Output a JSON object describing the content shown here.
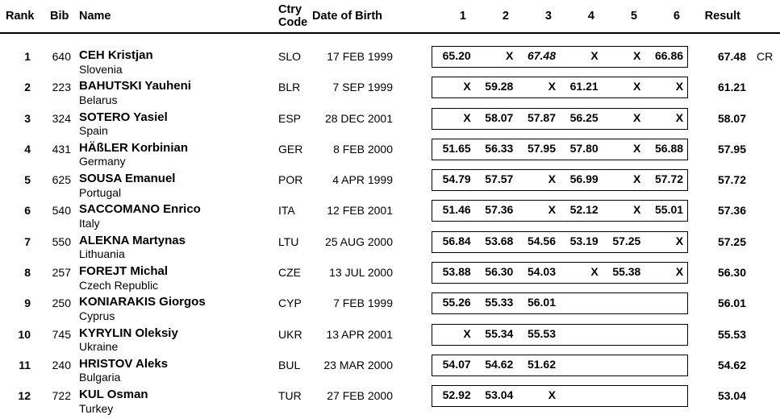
{
  "header": {
    "rank": "Rank",
    "bib": "Bib",
    "name": "Name",
    "ctry_line1": "Ctry",
    "ctry_line2": "Code",
    "dob": "Date of Birth",
    "attempts": [
      "1",
      "2",
      "3",
      "4",
      "5",
      "6"
    ],
    "result": "Result"
  },
  "rows": [
    {
      "rank": "1",
      "bib": "640",
      "name": "CEH Kristjan",
      "country": "Slovenia",
      "code": "SLO",
      "dob": "17 FEB 1999",
      "attempts": [
        "65.20",
        "X",
        "67.48",
        "X",
        "X",
        "66.86"
      ],
      "italic_attempt": 2,
      "result": "67.48",
      "note": "CR"
    },
    {
      "rank": "2",
      "bib": "223",
      "name": "BAHUTSKI Yauheni",
      "country": "Belarus",
      "code": "BLR",
      "dob": "7 SEP 1999",
      "attempts": [
        "X",
        "59.28",
        "X",
        "61.21",
        "X",
        "X"
      ],
      "italic_attempt": -1,
      "result": "61.21",
      "note": ""
    },
    {
      "rank": "3",
      "bib": "324",
      "name": "SOTERO Yasiel",
      "country": "Spain",
      "code": "ESP",
      "dob": "28 DEC 2001",
      "attempts": [
        "X",
        "58.07",
        "57.87",
        "56.25",
        "X",
        "X"
      ],
      "italic_attempt": -1,
      "result": "58.07",
      "note": ""
    },
    {
      "rank": "4",
      "bib": "431",
      "name": "HÄßLER Korbinian",
      "country": "Germany",
      "code": "GER",
      "dob": "8 FEB 2000",
      "attempts": [
        "51.65",
        "56.33",
        "57.95",
        "57.80",
        "X",
        "56.88"
      ],
      "italic_attempt": -1,
      "result": "57.95",
      "note": ""
    },
    {
      "rank": "5",
      "bib": "625",
      "name": "SOUSA Emanuel",
      "country": "Portugal",
      "code": "POR",
      "dob": "4 APR 1999",
      "attempts": [
        "54.79",
        "57.57",
        "X",
        "56.99",
        "X",
        "57.72"
      ],
      "italic_attempt": -1,
      "result": "57.72",
      "note": ""
    },
    {
      "rank": "6",
      "bib": "540",
      "name": "SACCOMANO Enrico",
      "country": "Italy",
      "code": "ITA",
      "dob": "12 FEB 2001",
      "attempts": [
        "51.46",
        "57.36",
        "X",
        "52.12",
        "X",
        "55.01"
      ],
      "italic_attempt": -1,
      "result": "57.36",
      "note": ""
    },
    {
      "rank": "7",
      "bib": "550",
      "name": "ALEKNA Martynas",
      "country": "Lithuania",
      "code": "LTU",
      "dob": "25 AUG 2000",
      "attempts": [
        "56.84",
        "53.68",
        "54.56",
        "53.19",
        "57.25",
        "X"
      ],
      "italic_attempt": -1,
      "result": "57.25",
      "note": ""
    },
    {
      "rank": "8",
      "bib": "257",
      "name": "FOREJT Michal",
      "country": "Czech Republic",
      "code": "CZE",
      "dob": "13 JUL 2000",
      "attempts": [
        "53.88",
        "56.30",
        "54.03",
        "X",
        "55.38",
        "X"
      ],
      "italic_attempt": -1,
      "result": "56.30",
      "note": ""
    },
    {
      "rank": "9",
      "bib": "250",
      "name": "KONIARAKIS Giorgos",
      "country": "Cyprus",
      "code": "CYP",
      "dob": "7 FEB 1999",
      "attempts": [
        "55.26",
        "55.33",
        "56.01",
        "",
        "",
        ""
      ],
      "italic_attempt": -1,
      "result": "56.01",
      "note": ""
    },
    {
      "rank": "10",
      "bib": "745",
      "name": "KYRYLIN Oleksiy",
      "country": "Ukraine",
      "code": "UKR",
      "dob": "13 APR 2001",
      "attempts": [
        "X",
        "55.34",
        "55.53",
        "",
        "",
        ""
      ],
      "italic_attempt": -1,
      "result": "55.53",
      "note": ""
    },
    {
      "rank": "11",
      "bib": "240",
      "name": "HRISTOV Aleks",
      "country": "Bulgaria",
      "code": "BUL",
      "dob": "23 MAR 2000",
      "attempts": [
        "54.07",
        "54.62",
        "51.62",
        "",
        "",
        ""
      ],
      "italic_attempt": -1,
      "result": "54.62",
      "note": ""
    },
    {
      "rank": "12",
      "bib": "722",
      "name": "KUL Osman",
      "country": "Turkey",
      "code": "TUR",
      "dob": "27 FEB 2000",
      "attempts": [
        "52.92",
        "53.04",
        "X",
        "",
        "",
        ""
      ],
      "italic_attempt": -1,
      "result": "53.04",
      "note": ""
    }
  ]
}
